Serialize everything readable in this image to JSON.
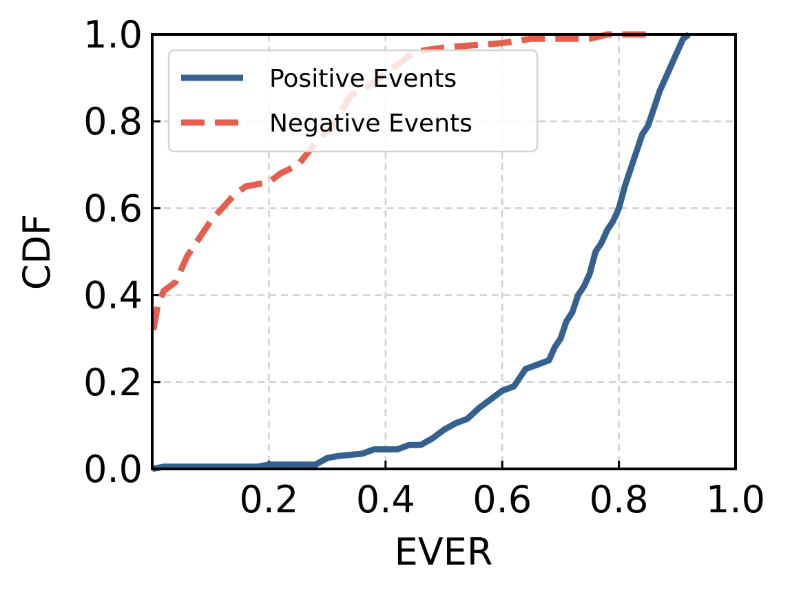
{
  "chart_data": {
    "type": "line",
    "title": "",
    "xlabel": "EVER",
    "ylabel": "CDF",
    "xlim": [
      0.0,
      1.0
    ],
    "ylim": [
      0.0,
      1.0
    ],
    "x_ticks": [
      "0.2",
      "0.4",
      "0.6",
      "0.8",
      "1.0"
    ],
    "y_ticks": [
      "0.0",
      "0.2",
      "0.4",
      "0.6",
      "0.8",
      "1.0"
    ],
    "grid": true,
    "legend_position": "top-left",
    "series": [
      {
        "name": "Positive Events",
        "color": "#35618f",
        "line_style": "solid",
        "points": [
          [
            0.0,
            0.0
          ],
          [
            0.02,
            0.005
          ],
          [
            0.18,
            0.005
          ],
          [
            0.2,
            0.01
          ],
          [
            0.28,
            0.01
          ],
          [
            0.3,
            0.025
          ],
          [
            0.32,
            0.03
          ],
          [
            0.36,
            0.035
          ],
          [
            0.38,
            0.045
          ],
          [
            0.42,
            0.045
          ],
          [
            0.44,
            0.055
          ],
          [
            0.46,
            0.055
          ],
          [
            0.48,
            0.07
          ],
          [
            0.5,
            0.09
          ],
          [
            0.52,
            0.105
          ],
          [
            0.54,
            0.115
          ],
          [
            0.56,
            0.14
          ],
          [
            0.58,
            0.16
          ],
          [
            0.6,
            0.18
          ],
          [
            0.62,
            0.19
          ],
          [
            0.63,
            0.21
          ],
          [
            0.64,
            0.23
          ],
          [
            0.66,
            0.24
          ],
          [
            0.68,
            0.25
          ],
          [
            0.69,
            0.28
          ],
          [
            0.7,
            0.3
          ],
          [
            0.71,
            0.34
          ],
          [
            0.72,
            0.36
          ],
          [
            0.73,
            0.4
          ],
          [
            0.74,
            0.42
          ],
          [
            0.75,
            0.45
          ],
          [
            0.76,
            0.5
          ],
          [
            0.77,
            0.52
          ],
          [
            0.78,
            0.55
          ],
          [
            0.79,
            0.57
          ],
          [
            0.8,
            0.6
          ],
          [
            0.81,
            0.65
          ],
          [
            0.82,
            0.69
          ],
          [
            0.83,
            0.73
          ],
          [
            0.84,
            0.77
          ],
          [
            0.85,
            0.79
          ],
          [
            0.86,
            0.83
          ],
          [
            0.87,
            0.87
          ],
          [
            0.88,
            0.9
          ],
          [
            0.89,
            0.93
          ],
          [
            0.9,
            0.96
          ],
          [
            0.91,
            0.99
          ],
          [
            0.92,
            1.0
          ]
        ]
      },
      {
        "name": "Negative Events",
        "color": "#e45f4e",
        "line_style": "dashed",
        "points": [
          [
            0.002,
            0.32
          ],
          [
            0.01,
            0.38
          ],
          [
            0.02,
            0.41
          ],
          [
            0.04,
            0.43
          ],
          [
            0.06,
            0.49
          ],
          [
            0.08,
            0.53
          ],
          [
            0.1,
            0.57
          ],
          [
            0.12,
            0.6
          ],
          [
            0.14,
            0.63
          ],
          [
            0.16,
            0.65
          ],
          [
            0.2,
            0.66
          ],
          [
            0.22,
            0.68
          ],
          [
            0.25,
            0.7
          ],
          [
            0.28,
            0.75
          ],
          [
            0.31,
            0.79
          ],
          [
            0.34,
            0.86
          ],
          [
            0.37,
            0.88
          ],
          [
            0.4,
            0.91
          ],
          [
            0.43,
            0.94
          ],
          [
            0.45,
            0.96
          ],
          [
            0.5,
            0.97
          ],
          [
            0.55,
            0.975
          ],
          [
            0.6,
            0.98
          ],
          [
            0.65,
            0.99
          ],
          [
            0.7,
            0.99
          ],
          [
            0.75,
            0.99
          ],
          [
            0.78,
            1.0
          ],
          [
            0.85,
            1.0
          ]
        ]
      }
    ]
  }
}
